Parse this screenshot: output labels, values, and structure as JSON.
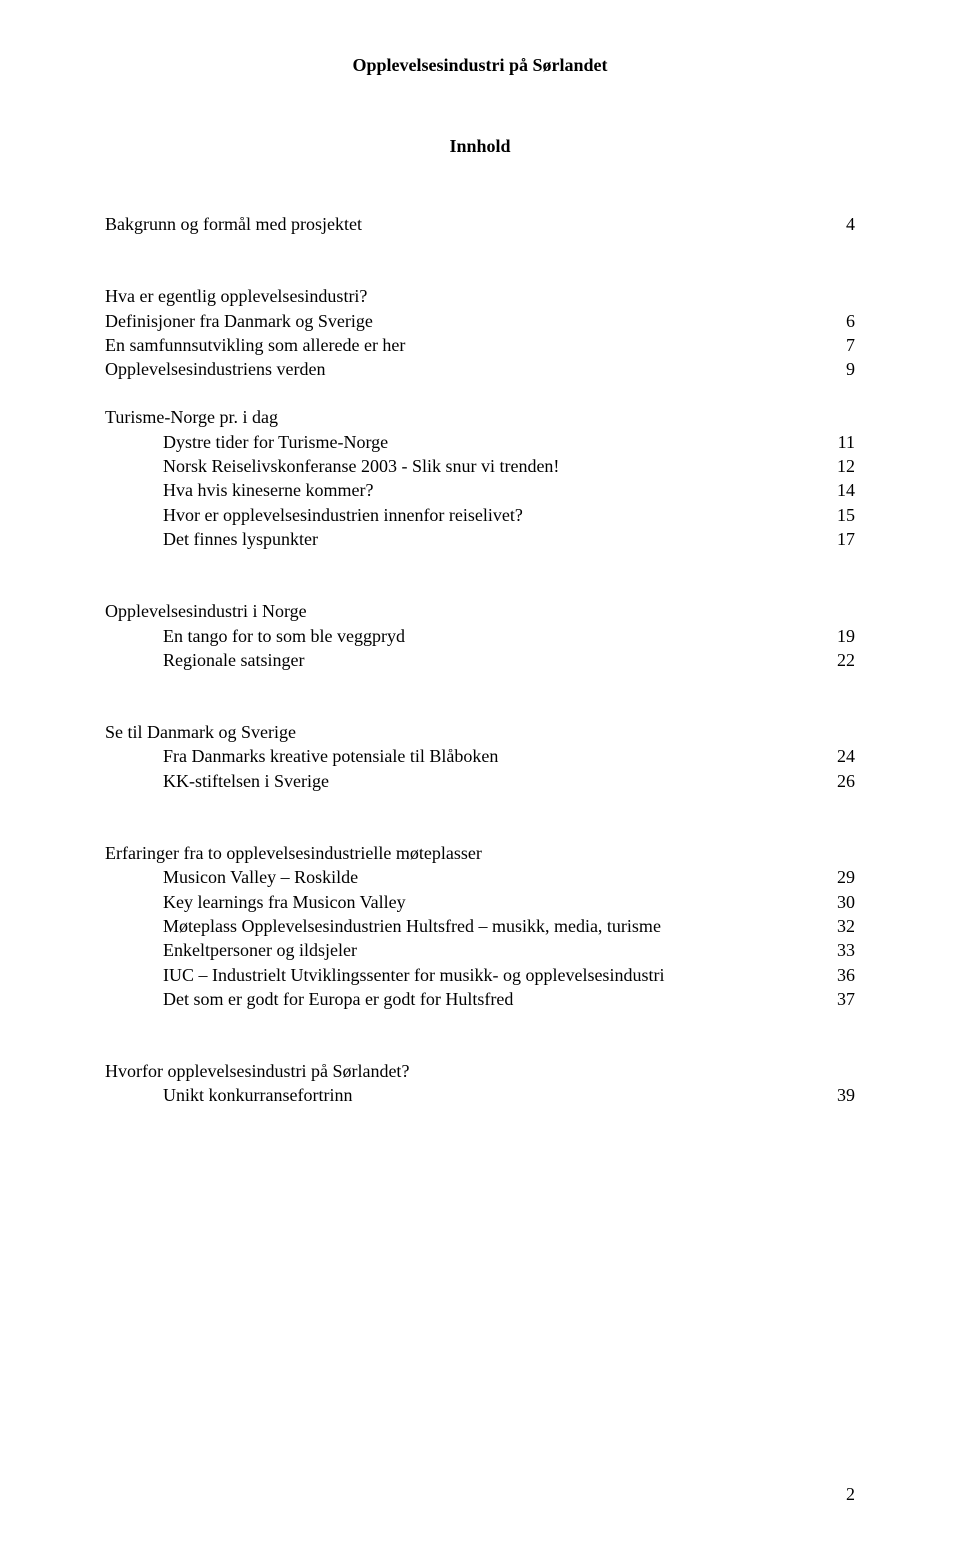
{
  "header": "Opplevelsesindustri på Sørlandet",
  "title": "Innhold",
  "pageNumber": "2",
  "sections": [
    {
      "heading": {
        "text": "Bakgrunn og formål med prosjektet",
        "page": "4"
      },
      "items": []
    },
    {
      "heading": {
        "text": "Hva er egentlig opplevelsesindustri?",
        "page": ""
      },
      "items": [
        {
          "text": "Definisjoner fra Danmark og Sverige",
          "page": "6",
          "indent": false
        },
        {
          "text": "En samfunnsutvikling som allerede er her",
          "page": "7",
          "indent": false
        },
        {
          "text": "Opplevelsesindustriens verden",
          "page": "9",
          "indent": false
        }
      ]
    },
    {
      "heading": {
        "text": "Turisme-Norge pr. i dag",
        "page": ""
      },
      "items": [
        {
          "text": "Dystre tider for Turisme-Norge",
          "page": "11",
          "indent": true
        },
        {
          "text": "Norsk Reiselivskonferanse 2003 - Slik snur vi trenden!",
          "page": "12",
          "indent": true
        },
        {
          "text": "Hva hvis kineserne kommer?",
          "page": "14",
          "indent": true
        },
        {
          "text": "Hvor er opplevelsesindustrien innenfor reiselivet?",
          "page": "15",
          "indent": true
        },
        {
          "text": "Det finnes lyspunkter",
          "page": "17",
          "indent": true
        }
      ]
    },
    {
      "heading": {
        "text": "Opplevelsesindustri i Norge",
        "page": ""
      },
      "items": [
        {
          "text": "En tango for to som ble veggpryd",
          "page": "19",
          "indent": true
        },
        {
          "text": "Regionale satsinger",
          "page": "22",
          "indent": true
        }
      ]
    },
    {
      "heading": {
        "text": "Se til Danmark og Sverige",
        "page": ""
      },
      "items": [
        {
          "text": "Fra Danmarks kreative potensiale til Blåboken",
          "page": "24",
          "indent": true
        },
        {
          "text": "KK-stiftelsen i Sverige",
          "page": "26",
          "indent": true
        }
      ]
    },
    {
      "heading": {
        "text": "Erfaringer fra to opplevelsesindustrielle møteplasser",
        "page": ""
      },
      "items": [
        {
          "text": "Musicon Valley – Roskilde",
          "page": "29",
          "indent": true
        },
        {
          "text": "Key learnings fra Musicon Valley",
          "page": "30",
          "indent": true
        },
        {
          "text": "Møteplass Opplevelsesindustrien Hultsfred – musikk, media, turisme",
          "page": "32",
          "indent": true
        },
        {
          "text": "Enkeltpersoner og ildsjeler",
          "page": "33",
          "indent": true
        },
        {
          "text": "IUC – Industrielt Utviklingssenter for musikk- og opplevelsesindustri",
          "page": "36",
          "indent": true
        },
        {
          "text": "Det som er godt for Europa er godt for Hultsfred",
          "page": "37",
          "indent": true
        }
      ]
    },
    {
      "heading": {
        "text": "Hvorfor opplevelsesindustri på Sørlandet?",
        "page": ""
      },
      "items": [
        {
          "text": "Unikt konkurransefortrinn",
          "page": "39",
          "indent": true
        }
      ]
    }
  ]
}
